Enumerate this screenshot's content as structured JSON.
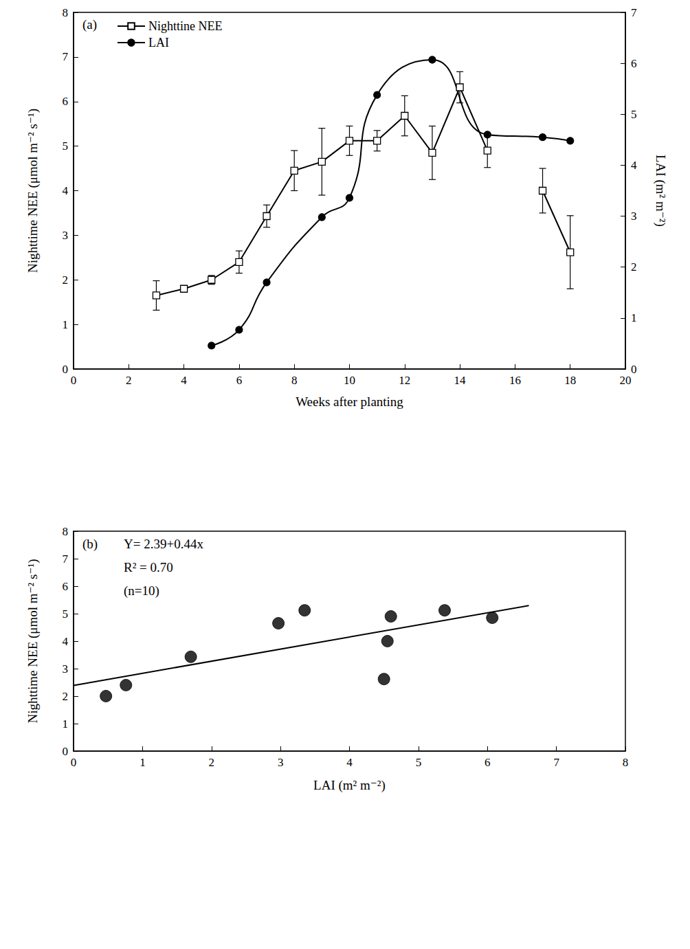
{
  "chart_data": [
    {
      "type": "line",
      "title": "(a)",
      "x_label": "Weeks after planting",
      "y_label": "Nighttime NEE (μmol m⁻² s⁻¹)",
      "y2_label": "LAI (m² m⁻²)",
      "xlim": [
        0,
        20
      ],
      "xticks": [
        0,
        2,
        4,
        6,
        8,
        10,
        12,
        14,
        16,
        18,
        20
      ],
      "ylim": [
        0,
        8
      ],
      "yticks": [
        0,
        1,
        2,
        3,
        4,
        5,
        6,
        7,
        8
      ],
      "y2lim": [
        0,
        7
      ],
      "y2ticks": [
        0,
        1,
        2,
        3,
        4,
        5,
        6,
        7
      ],
      "grid": false,
      "legend": "upper left",
      "series": [
        {
          "name": "Nighttine NEE",
          "color": "#000000",
          "marker": "open square",
          "line_style": "solid",
          "x": [
            3,
            4,
            5,
            6,
            7,
            8,
            9,
            10,
            11,
            12,
            13,
            14,
            15,
            16,
            17,
            18
          ],
          "values": [
            1.65,
            1.8,
            2.0,
            2.4,
            3.43,
            4.45,
            4.65,
            5.12,
            5.12,
            5.68,
            4.85,
            6.32,
            4.9,
            null,
            4.0,
            2.62
          ],
          "errors": [
            0.33,
            0.07,
            0.1,
            0.25,
            0.25,
            0.45,
            0.75,
            0.33,
            0.23,
            0.45,
            0.6,
            0.35,
            0.38,
            null,
            0.5,
            0.82
          ]
        },
        {
          "name": "LAI",
          "color": "#000000",
          "marker": "circle",
          "line_style": "smooth",
          "axis": "y2",
          "x": [
            5,
            6,
            7,
            9,
            10,
            11,
            13,
            15,
            17,
            18
          ],
          "values": [
            0.46,
            0.77,
            1.7,
            2.98,
            3.36,
            5.38,
            6.07,
            4.6,
            4.55,
            4.48
          ]
        }
      ]
    },
    {
      "type": "scatter",
      "title": "(b)",
      "x_label": "LAI (m² m⁻²)",
      "y_label": "Nighttime NEE (μmol m⁻² s⁻¹)",
      "xlim": [
        0,
        8
      ],
      "xticks": [
        0,
        1,
        2,
        3,
        4,
        5,
        6,
        7,
        8
      ],
      "ylim": [
        0,
        8
      ],
      "yticks": [
        0,
        1,
        2,
        3,
        4,
        5,
        6,
        7,
        8
      ],
      "grid": false,
      "color": "#000000",
      "marker": "circle",
      "x": [
        0.47,
        0.76,
        1.7,
        2.97,
        3.35,
        4.5,
        4.55,
        4.6,
        5.38,
        6.07
      ],
      "values": [
        2.0,
        2.4,
        3.43,
        4.65,
        5.12,
        2.62,
        4.0,
        4.9,
        5.12,
        4.85
      ],
      "annotations": [
        "Y= 2.39+0.44x",
        "R² = 0.70",
        "(n=10)"
      ],
      "fit": {
        "intercept": 2.39,
        "slope": 0.44,
        "x": [
          0,
          6.6
        ]
      }
    }
  ]
}
